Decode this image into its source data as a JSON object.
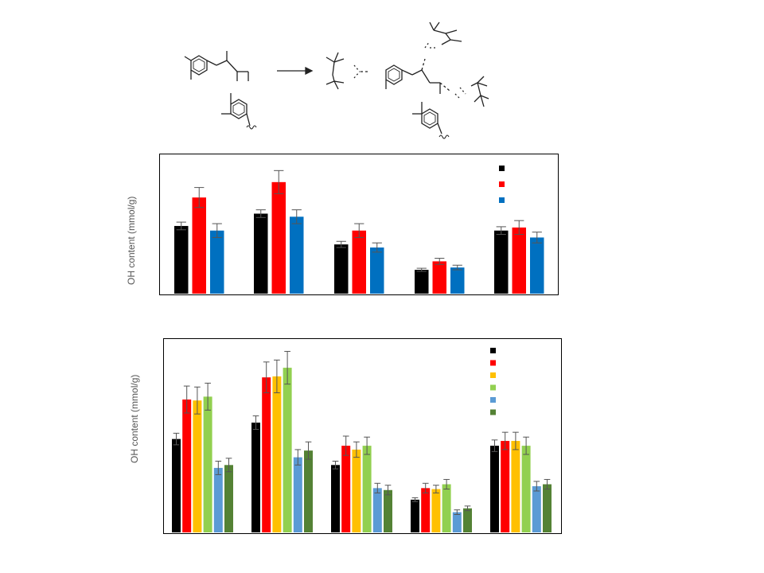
{
  "scheme": {
    "type": "reaction-scheme",
    "description_visible": false
  },
  "chart_data": [
    {
      "type": "bar",
      "title": "",
      "xlabel": "",
      "ylabel": "OH content (mmol/g)",
      "ylim": [
        0,
        9
      ],
      "grid": false,
      "legend_position": "top-right",
      "categories": [
        "",
        "",
        "",
        "",
        ""
      ],
      "series": [
        {
          "color": "#000000",
          "values": [
            4.4,
            5.2,
            3.2,
            1.55,
            4.1
          ],
          "errors": [
            0.25,
            0.25,
            0.2,
            0.1,
            0.25
          ]
        },
        {
          "color": "#ff0000",
          "values": [
            6.25,
            7.25,
            4.1,
            2.1,
            4.3
          ],
          "errors": [
            0.65,
            0.75,
            0.45,
            0.2,
            0.45
          ]
        },
        {
          "color": "#0070c0",
          "values": [
            4.1,
            5.0,
            3.0,
            1.7,
            3.65
          ],
          "errors": [
            0.45,
            0.45,
            0.3,
            0.15,
            0.35
          ]
        }
      ]
    },
    {
      "type": "bar",
      "title": "",
      "xlabel": "",
      "ylabel": "OH content (mmol/g)",
      "ylim": [
        0,
        10
      ],
      "grid": false,
      "legend_position": "top-right",
      "categories": [
        "",
        "",
        "",
        "",
        ""
      ],
      "series": [
        {
          "color": "#000000",
          "values": [
            4.85,
            5.7,
            3.5,
            1.7,
            4.5
          ],
          "errors": [
            0.3,
            0.35,
            0.2,
            0.1,
            0.3
          ]
        },
        {
          "color": "#ff0000",
          "values": [
            6.9,
            8.05,
            4.5,
            2.3,
            4.75
          ],
          "errors": [
            0.7,
            0.8,
            0.5,
            0.25,
            0.45
          ]
        },
        {
          "color": "#ffc000",
          "values": [
            6.85,
            8.1,
            4.3,
            2.25,
            4.75
          ],
          "errors": [
            0.7,
            0.85,
            0.4,
            0.2,
            0.45
          ]
        },
        {
          "color": "#92d050",
          "values": [
            7.05,
            8.55,
            4.5,
            2.5,
            4.5
          ],
          "errors": [
            0.7,
            0.85,
            0.45,
            0.25,
            0.45
          ]
        },
        {
          "color": "#5b9bd5",
          "values": [
            3.35,
            3.9,
            2.3,
            1.05,
            2.4
          ],
          "errors": [
            0.35,
            0.4,
            0.25,
            0.12,
            0.25
          ]
        },
        {
          "color": "#548235",
          "values": [
            3.5,
            4.25,
            2.2,
            1.25,
            2.5
          ],
          "errors": [
            0.35,
            0.45,
            0.25,
            0.12,
            0.25
          ]
        }
      ]
    }
  ]
}
